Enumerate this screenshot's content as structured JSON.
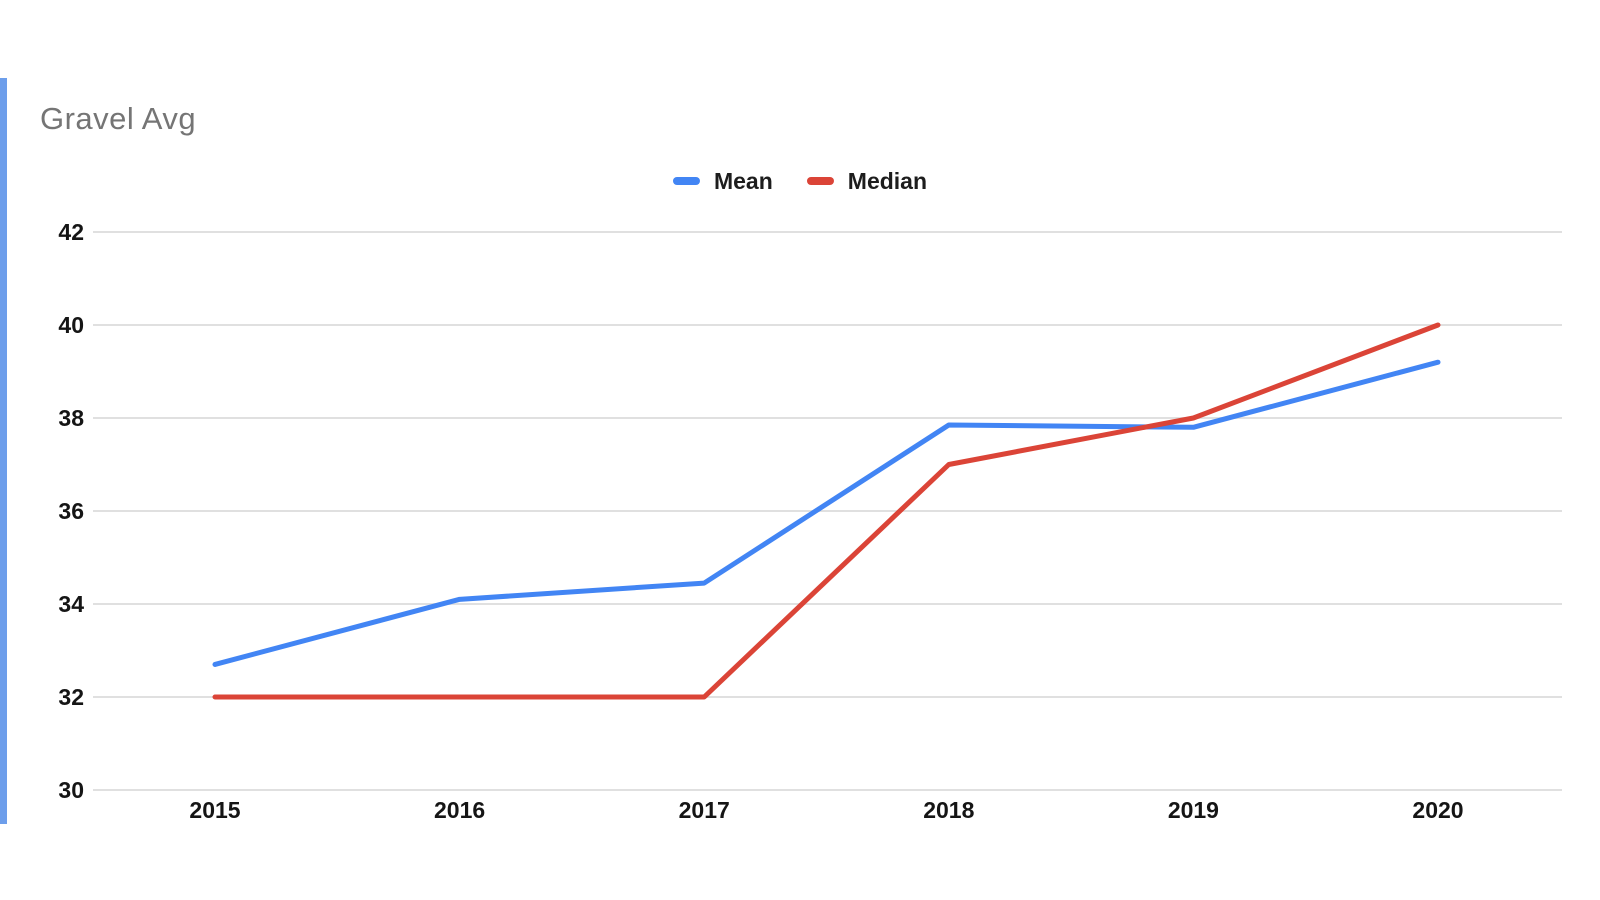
{
  "page": {
    "background": "#ffffff",
    "left_accent_color": "#6d9eeb"
  },
  "chart_data": {
    "type": "line",
    "title": "Gravel Avg",
    "title_color": "#757575",
    "categories": [
      "2015",
      "2016",
      "2017",
      "2018",
      "2019",
      "2020"
    ],
    "series": [
      {
        "name": "Mean",
        "color": "#4285f4",
        "values": [
          32.7,
          34.1,
          34.45,
          37.85,
          37.8,
          39.2
        ]
      },
      {
        "name": "Median",
        "color": "#db4437",
        "values": [
          32,
          32,
          32,
          37,
          38,
          40
        ]
      }
    ],
    "y_ticks": [
      30,
      32,
      34,
      36,
      38,
      40,
      42
    ],
    "ylim": [
      30,
      42
    ],
    "grid": true,
    "gridline_color": "#e0e0e0",
    "axis_label_color": "#151515",
    "legend_position": "top-center",
    "line_width": 5
  }
}
